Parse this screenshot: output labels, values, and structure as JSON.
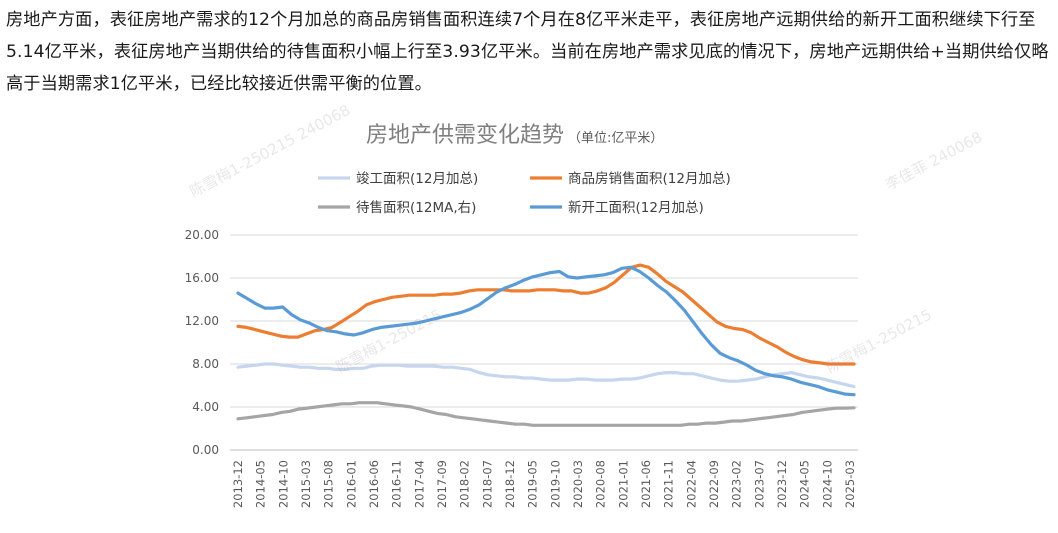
{
  "text": {
    "paragraph": "房地产方面，表征房地产需求的12个月加总的商品房销售面积连续7个月在8亿平米走平，表征房地产远期供给的新开工面积继续下行至5.14亿平米，表征房地产当期供给的待售面积小幅上行至3.93亿平米。当前在房地产需求见底的情况下，房地产远期供给+当期供给仅略高于当期需求1亿平米，已经比较接近供需平衡的位置。"
  },
  "chart_data": {
    "type": "line",
    "title": "房地产供需变化趋势",
    "subtitle": "（单位:亿平米）",
    "ylim": [
      0,
      20
    ],
    "yticks": [
      "0.00",
      "4.00",
      "8.00",
      "12.00",
      "16.00",
      "20.00"
    ],
    "xticks": [
      "2013-12",
      "2014-05",
      "2014-10",
      "2015-03",
      "2015-08",
      "2016-01",
      "2016-06",
      "2016-11",
      "2017-04",
      "2017-09",
      "2018-02",
      "2018-07",
      "2018-12",
      "2019-05",
      "2019-10",
      "2020-03",
      "2020-08",
      "2021-01",
      "2021-06",
      "2021-11",
      "2022-04",
      "2022-09",
      "2023-02",
      "2023-07",
      "2023-12",
      "2024-05",
      "2024-10",
      "2025-03"
    ],
    "legend": "top",
    "grid": true,
    "series": [
      {
        "name": "竣工面积(12月加总)",
        "color": "#c6d6ee",
        "values": [
          7.7,
          7.8,
          7.9,
          8.0,
          8.0,
          7.9,
          7.8,
          7.7,
          7.7,
          7.6,
          7.6,
          7.5,
          7.5,
          7.6,
          7.6,
          7.8,
          7.9,
          7.9,
          7.9,
          7.8,
          7.8,
          7.8,
          7.8,
          7.7,
          7.7,
          7.6,
          7.5,
          7.2,
          7.0,
          6.9,
          6.8,
          6.8,
          6.7,
          6.7,
          6.6,
          6.5,
          6.5,
          6.5,
          6.6,
          6.6,
          6.5,
          6.5,
          6.5,
          6.6,
          6.6,
          6.7,
          6.9,
          7.1,
          7.2,
          7.2,
          7.1,
          7.1,
          6.9,
          6.7,
          6.5,
          6.4,
          6.4,
          6.5,
          6.6,
          6.8,
          7.0,
          7.1,
          7.2,
          7.0,
          6.8,
          6.7,
          6.5,
          6.3,
          6.1,
          5.9
        ]
      },
      {
        "name": "商品房销售面积(12月加总)",
        "color": "#ed7d31",
        "values": [
          11.5,
          11.4,
          11.2,
          11.0,
          10.8,
          10.6,
          10.5,
          10.5,
          10.8,
          11.1,
          11.2,
          11.4,
          11.9,
          12.4,
          12.9,
          13.5,
          13.8,
          14.0,
          14.2,
          14.3,
          14.4,
          14.4,
          14.4,
          14.4,
          14.5,
          14.5,
          14.6,
          14.8,
          14.9,
          14.9,
          14.9,
          14.9,
          14.8,
          14.8,
          14.8,
          14.9,
          14.9,
          14.9,
          14.8,
          14.8,
          14.6,
          14.6,
          14.8,
          15.1,
          15.6,
          16.3,
          17.0,
          17.2,
          17.0,
          16.4,
          15.7,
          15.2,
          14.7,
          14.0,
          13.3,
          12.6,
          11.9,
          11.5,
          11.3,
          11.2,
          10.9,
          10.4,
          10.0,
          9.6,
          9.1,
          8.7,
          8.4,
          8.2,
          8.1,
          8.0,
          8.0,
          8.0,
          8.0
        ]
      },
      {
        "name": "待售面积(12MA,右)",
        "color": "#a5a5a5",
        "values": [
          2.9,
          3.0,
          3.1,
          3.2,
          3.3,
          3.5,
          3.6,
          3.8,
          3.9,
          4.0,
          4.1,
          4.2,
          4.3,
          4.3,
          4.4,
          4.4,
          4.4,
          4.3,
          4.2,
          4.1,
          4.0,
          3.8,
          3.6,
          3.4,
          3.3,
          3.1,
          3.0,
          2.9,
          2.8,
          2.7,
          2.6,
          2.5,
          2.4,
          2.4,
          2.3,
          2.3,
          2.3,
          2.3,
          2.3,
          2.3,
          2.3,
          2.3,
          2.3,
          2.3,
          2.3,
          2.3,
          2.3,
          2.3,
          2.3,
          2.3,
          2.3,
          2.3,
          2.4,
          2.4,
          2.5,
          2.5,
          2.6,
          2.7,
          2.7,
          2.8,
          2.9,
          3.0,
          3.1,
          3.2,
          3.3,
          3.5,
          3.6,
          3.7,
          3.8,
          3.9,
          3.9,
          3.93
        ]
      },
      {
        "name": "新开工面积(12月加总)",
        "color": "#5b9bd5",
        "values": [
          14.6,
          14.1,
          13.6,
          13.2,
          13.2,
          13.3,
          12.6,
          12.1,
          11.8,
          11.4,
          11.1,
          11.0,
          10.8,
          10.7,
          10.9,
          11.2,
          11.4,
          11.5,
          11.6,
          11.7,
          11.8,
          12.0,
          12.2,
          12.4,
          12.6,
          12.8,
          13.1,
          13.5,
          14.1,
          14.7,
          15.1,
          15.4,
          15.8,
          16.1,
          16.3,
          16.5,
          16.6,
          16.1,
          16.0,
          16.1,
          16.2,
          16.3,
          16.5,
          16.9,
          17.0,
          16.6,
          16.0,
          15.3,
          14.7,
          13.9,
          13.0,
          11.9,
          10.8,
          9.8,
          9.0,
          8.6,
          8.3,
          7.9,
          7.4,
          7.1,
          6.9,
          6.8,
          6.6,
          6.3,
          6.1,
          5.9,
          5.6,
          5.4,
          5.2,
          5.14
        ]
      }
    ]
  }
}
